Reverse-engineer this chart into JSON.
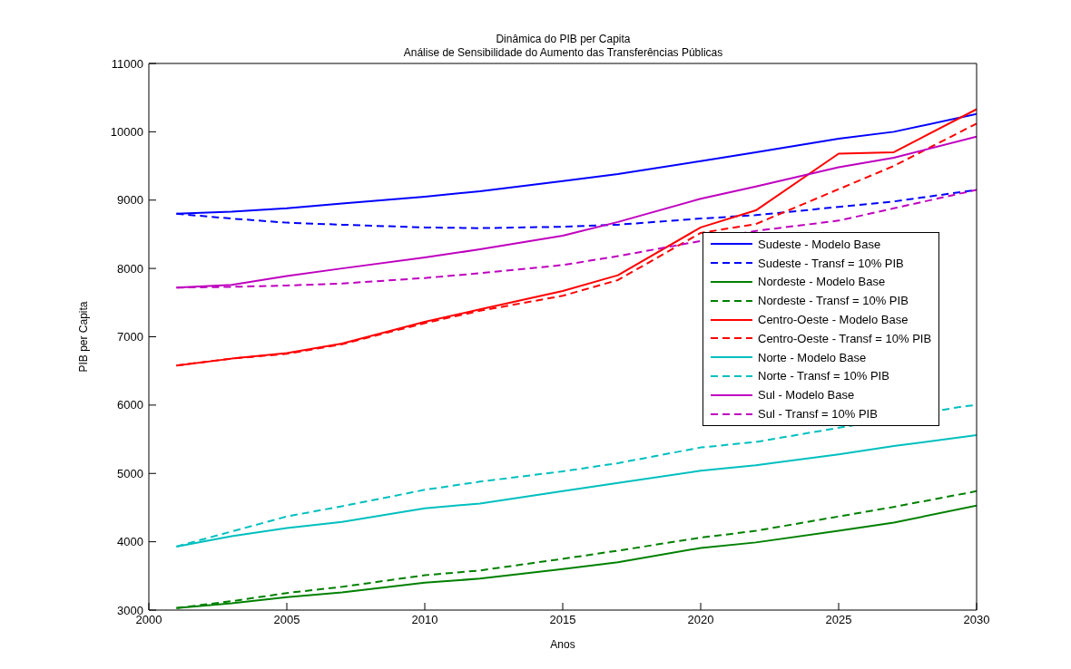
{
  "chart_data": {
    "type": "line",
    "title": "Dinâmica do PIB per Capita",
    "subtitle": "Análise de Sensibilidade do Aumento das Transferências Públicas",
    "xlabel": "Anos",
    "ylabel": "PIB per Capita",
    "x": [
      2001,
      2003,
      2005,
      2007,
      2010,
      2012,
      2015,
      2017,
      2020,
      2022,
      2025,
      2027,
      2030
    ],
    "series": [
      {
        "name": "Sudeste - Modelo Base",
        "color": "#0000ff",
        "line_style": "solid",
        "values": [
          8800,
          8830,
          8880,
          8950,
          9050,
          9130,
          9280,
          9380,
          9570,
          9700,
          9900,
          10000,
          10260
        ]
      },
      {
        "name": "Sudeste - Transf = 10% PIB",
        "color": "#0000ff",
        "line_style": "dashed",
        "values": [
          8800,
          8730,
          8670,
          8640,
          8600,
          8590,
          8610,
          8640,
          8730,
          8780,
          8900,
          8980,
          9150
        ]
      },
      {
        "name": "Nordeste - Modelo Base",
        "color": "#008000",
        "line_style": "solid",
        "values": [
          3030,
          3100,
          3190,
          3260,
          3400,
          3460,
          3600,
          3700,
          3910,
          3990,
          4160,
          4280,
          4530
        ]
      },
      {
        "name": "Nordeste - Transf = 10% PIB",
        "color": "#008000",
        "line_style": "dashed",
        "values": [
          3030,
          3130,
          3250,
          3340,
          3510,
          3580,
          3750,
          3870,
          4060,
          4160,
          4370,
          4510,
          4740
        ]
      },
      {
        "name": "Centro-Oeste - Modelo Base",
        "color": "#ff0000",
        "line_style": "solid",
        "values": [
          6580,
          6680,
          6760,
          6900,
          7220,
          7400,
          7670,
          7900,
          8600,
          8850,
          9680,
          9700,
          10330
        ]
      },
      {
        "name": "Centro-Oeste - Transf = 10% PIB",
        "color": "#ff0000",
        "line_style": "dashed",
        "values": [
          6580,
          6680,
          6750,
          6890,
          7200,
          7380,
          7600,
          7830,
          8520,
          8650,
          9160,
          9500,
          10120
        ]
      },
      {
        "name": "Norte - Modelo Base",
        "color": "#00bfbf",
        "line_style": "solid",
        "values": [
          3930,
          4080,
          4200,
          4290,
          4490,
          4560,
          4740,
          4860,
          5040,
          5120,
          5280,
          5400,
          5560
        ]
      },
      {
        "name": "Norte - Transf = 10% PIB",
        "color": "#00bfbf",
        "line_style": "dashed",
        "x": [
          2001,
          2003,
          2005,
          2007,
          2010,
          2012,
          2015,
          2017,
          2020,
          2022,
          2029.5,
          2030
        ],
        "values": [
          3930,
          4150,
          4370,
          4520,
          4760,
          4880,
          5030,
          5150,
          5380,
          5460,
          5980,
          6000
        ]
      },
      {
        "name": "Sul - Modelo Base",
        "color": "#bf00bf",
        "line_style": "solid",
        "values": [
          7720,
          7760,
          7890,
          8000,
          8160,
          8280,
          8480,
          8680,
          9020,
          9200,
          9480,
          9620,
          9930
        ]
      },
      {
        "name": "Sul - Transf = 10% PIB",
        "color": "#bf00bf",
        "line_style": "dashed",
        "x": [
          2001,
          2003,
          2005,
          2007,
          2010,
          2012,
          2015,
          2017,
          2022,
          2025,
          2027,
          2030
        ],
        "values": [
          7720,
          7730,
          7750,
          7780,
          7860,
          7930,
          8050,
          8180,
          8550,
          8700,
          8880,
          9150
        ]
      }
    ],
    "xlim": [
      2000,
      2030
    ],
    "xticks": [
      2000,
      2005,
      2010,
      2015,
      2020,
      2025,
      2030
    ],
    "ylim": [
      3000,
      11000
    ],
    "yticks": [
      3000,
      4000,
      5000,
      6000,
      7000,
      8000,
      9000,
      10000,
      11000
    ],
    "legend": "right",
    "grid": false,
    "marker": "none"
  }
}
